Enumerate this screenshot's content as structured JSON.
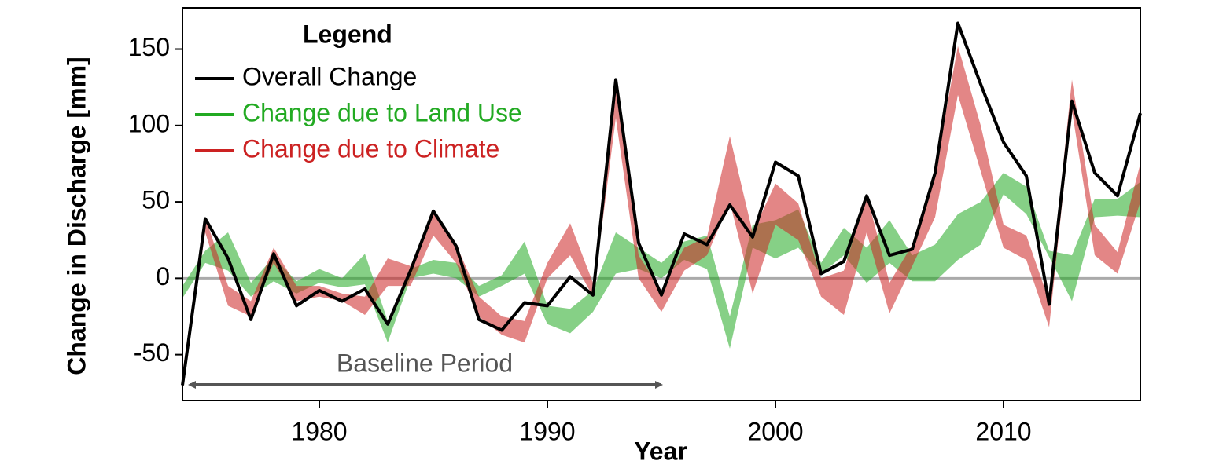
{
  "chart_data": {
    "type": "line",
    "x_label": "Year",
    "y_label": "Change in Discharge [mm]",
    "legend_title": "Legend",
    "legend": "upper left",
    "zero_line": true,
    "x": [
      1974,
      1975,
      1976,
      1977,
      1978,
      1979,
      1980,
      1981,
      1982,
      1983,
      1984,
      1985,
      1986,
      1987,
      1988,
      1989,
      1990,
      1991,
      1992,
      1993,
      1994,
      1995,
      1996,
      1997,
      1998,
      1999,
      2000,
      2001,
      2002,
      2003,
      2004,
      2005,
      2006,
      2007,
      2008,
      2009,
      2010,
      2011,
      2012,
      2013,
      2014,
      2015,
      2016
    ],
    "series": [
      {
        "name": "Overall Change",
        "color": "#000000",
        "style": "line",
        "values": [
          -70,
          39,
          13,
          -27,
          16,
          -18,
          -8,
          -15,
          -7,
          -30,
          5,
          44,
          21,
          -27,
          -34,
          -16,
          -18,
          1,
          -11,
          130,
          23,
          -11,
          29,
          22,
          48,
          27,
          76,
          67,
          3,
          11,
          54,
          15,
          19,
          69,
          167,
          127,
          89,
          67,
          -17,
          116,
          69,
          54,
          108
        ]
      },
      {
        "name": "Change due to Land Use",
        "color": "#22aa22",
        "style": "band",
        "lower": [
          -13,
          10,
          5,
          -12,
          -2,
          -10,
          -3,
          -6,
          -4,
          -42,
          0,
          3,
          0,
          -12,
          -5,
          3,
          -30,
          -36,
          -22,
          3,
          6,
          0,
          12,
          6,
          -46,
          20,
          13,
          20,
          3,
          15,
          -3,
          10,
          -2,
          -2,
          12,
          22,
          55,
          42,
          14,
          -15,
          40,
          41,
          40
        ],
        "upper": [
          -5,
          18,
          30,
          -3,
          14,
          -2,
          6,
          0,
          16,
          -28,
          6,
          12,
          10,
          -5,
          2,
          24,
          -18,
          -20,
          -8,
          30,
          20,
          10,
          24,
          28,
          -25,
          35,
          38,
          45,
          10,
          33,
          20,
          38,
          15,
          22,
          42,
          50,
          69,
          60,
          18,
          15,
          52,
          52,
          63
        ]
      },
      {
        "name": "Change due to Climate",
        "color": "#cc2222",
        "style": "band",
        "lower": [
          -72,
          30,
          -18,
          -25,
          10,
          -15,
          -12,
          -15,
          -24,
          -5,
          -5,
          28,
          10,
          -25,
          -37,
          -42,
          0,
          15,
          -12,
          105,
          0,
          -22,
          5,
          15,
          50,
          -10,
          35,
          25,
          -12,
          -24,
          30,
          -23,
          8,
          40,
          120,
          70,
          20,
          12,
          -32,
          110,
          15,
          3,
          50
        ],
        "upper": [
          -62,
          40,
          -5,
          -15,
          20,
          -5,
          -5,
          -10,
          -12,
          13,
          8,
          43,
          22,
          -12,
          -25,
          -28,
          10,
          36,
          -3,
          127,
          15,
          -8,
          20,
          27,
          93,
          30,
          62,
          49,
          0,
          5,
          55,
          -3,
          22,
          70,
          152,
          100,
          35,
          28,
          -15,
          130,
          35,
          17,
          75
        ]
      }
    ],
    "annotation": "Baseline Period",
    "xlim": [
      1974,
      2016
    ],
    "ylim": [
      -80,
      177
    ],
    "xticks": [
      1980,
      1990,
      2000,
      2010
    ],
    "yticks": [
      -50,
      0,
      50,
      100,
      150
    ]
  }
}
